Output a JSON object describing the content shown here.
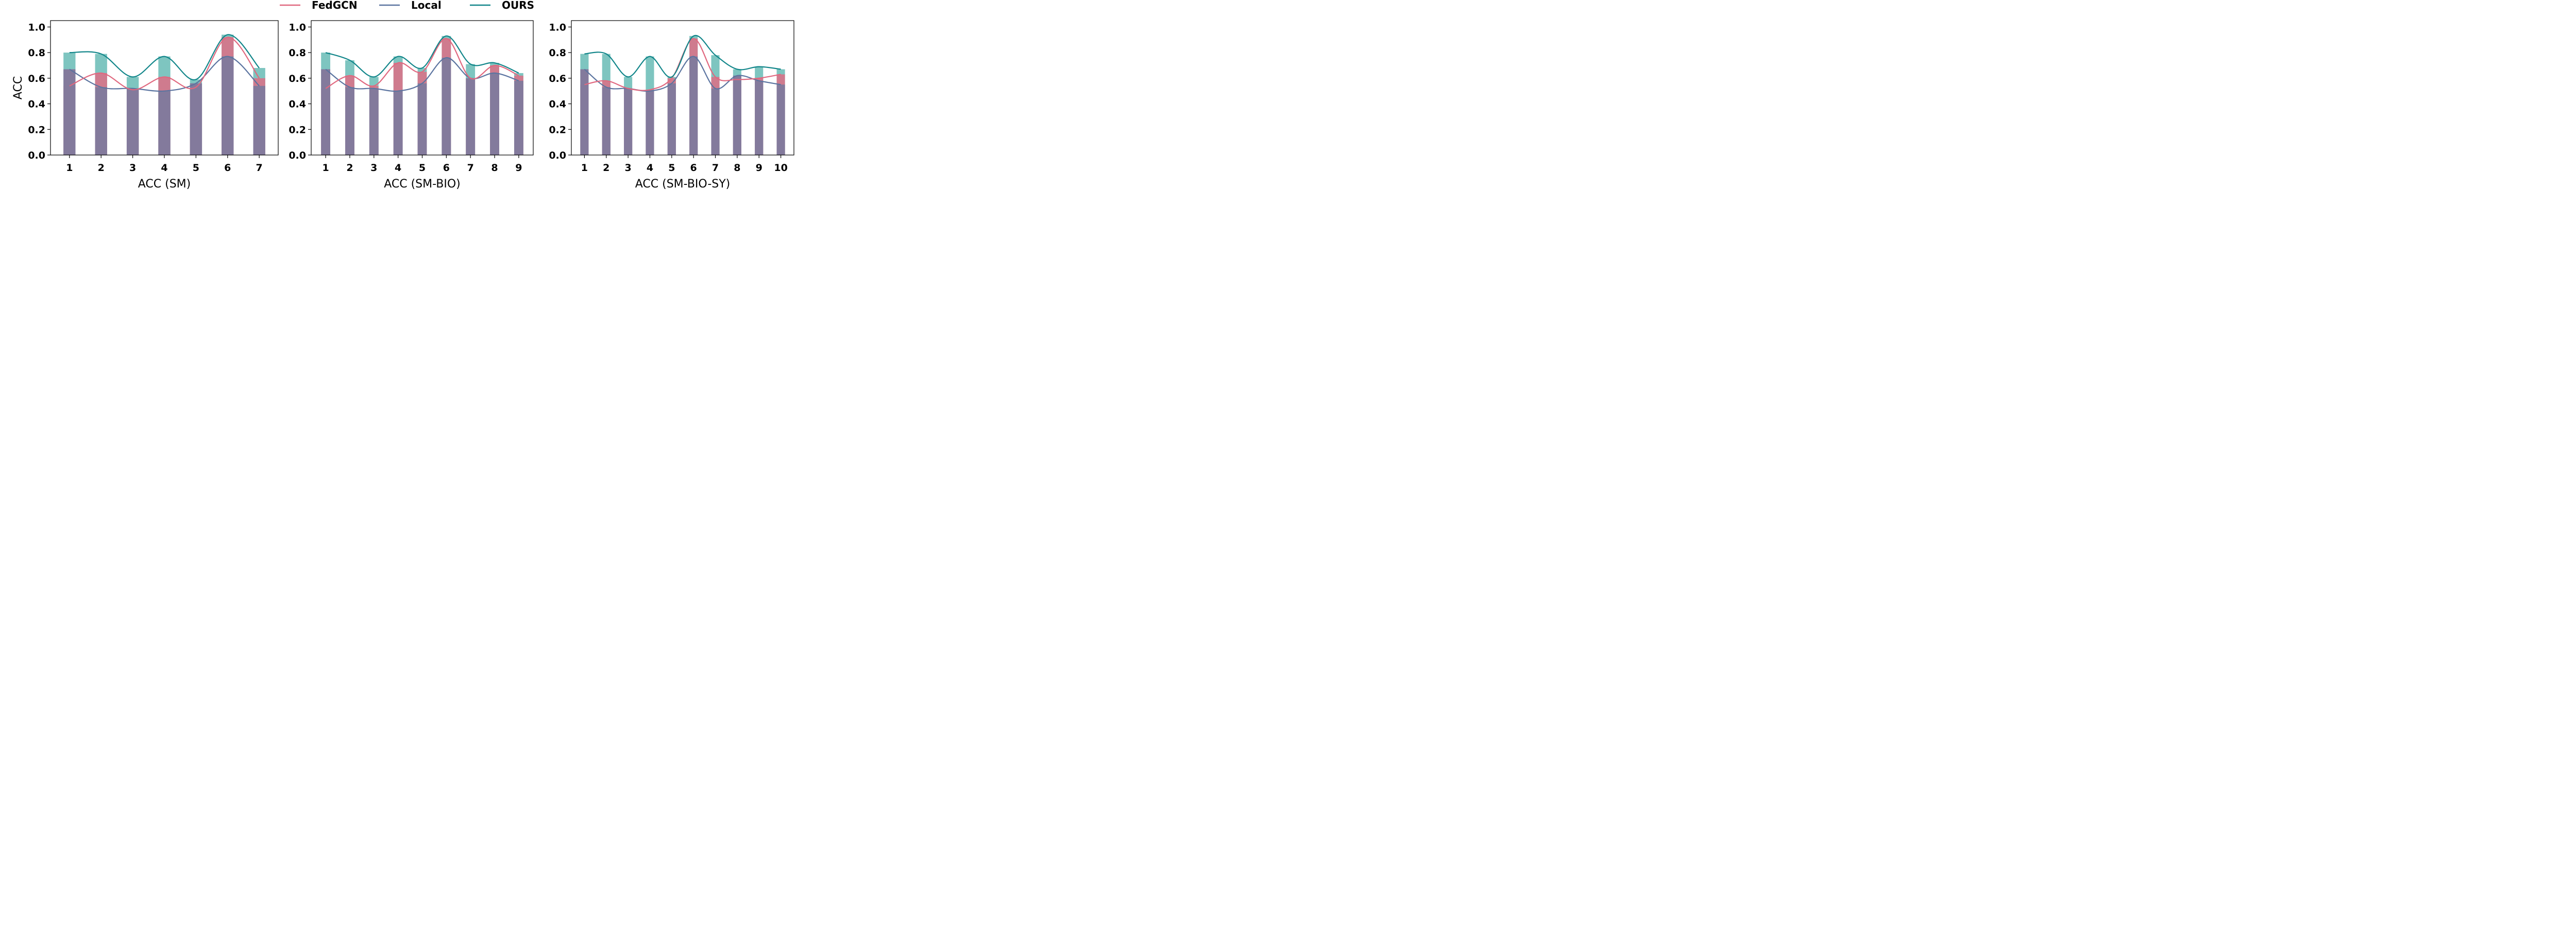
{
  "colors": {
    "FedGCN": "#e0687f",
    "Local": "#5b74a0",
    "OURS": "#12868a",
    "ours_bar": "#7ec5c0",
    "fedgcn_bar": "#cf7b8e",
    "local_bar": "#837a9c"
  },
  "legend": {
    "placement": "top-center",
    "entries": [
      "FedGCN",
      "Local",
      "OURS"
    ]
  },
  "chart_data": [
    {
      "type": "bar",
      "xlabel": "ACC (SM)",
      "ylabel": "ACC",
      "ylim": [
        0,
        1.05
      ],
      "yticks": [
        "0.0",
        "0.2",
        "0.4",
        "0.6",
        "0.8",
        "1.0"
      ],
      "categories": [
        "1",
        "2",
        "3",
        "4",
        "5",
        "6",
        "7"
      ],
      "series": [
        {
          "name": "FedGCN",
          "values": [
            0.54,
            0.64,
            0.51,
            0.61,
            0.53,
            0.92,
            0.6
          ]
        },
        {
          "name": "Local",
          "values": [
            0.67,
            0.53,
            0.52,
            0.5,
            0.56,
            0.77,
            0.54
          ]
        },
        {
          "name": "OURS",
          "values": [
            0.8,
            0.79,
            0.61,
            0.77,
            0.59,
            0.94,
            0.68
          ]
        }
      ]
    },
    {
      "type": "bar",
      "xlabel": "ACC (SM-BIO)",
      "ylabel": "",
      "ylim": [
        0,
        1.05
      ],
      "yticks": [
        "0.0",
        "0.2",
        "0.4",
        "0.6",
        "0.8",
        "1.0"
      ],
      "categories": [
        "1",
        "2",
        "3",
        "4",
        "5",
        "6",
        "7",
        "8",
        "9"
      ],
      "series": [
        {
          "name": "FedGCN",
          "values": [
            0.52,
            0.62,
            0.54,
            0.72,
            0.65,
            0.91,
            0.6,
            0.7,
            0.62
          ]
        },
        {
          "name": "Local",
          "values": [
            0.67,
            0.53,
            0.52,
            0.5,
            0.56,
            0.76,
            0.6,
            0.64,
            0.58
          ]
        },
        {
          "name": "OURS",
          "values": [
            0.8,
            0.74,
            0.61,
            0.77,
            0.68,
            0.93,
            0.71,
            0.72,
            0.64
          ]
        }
      ]
    },
    {
      "type": "bar",
      "xlabel": "ACC (SM-BIO-SY)",
      "ylabel": "",
      "ylim": [
        0,
        1.05
      ],
      "yticks": [
        "0.0",
        "0.2",
        "0.4",
        "0.6",
        "0.8",
        "1.0"
      ],
      "categories": [
        "1",
        "2",
        "3",
        "4",
        "5",
        "6",
        "7",
        "8",
        "9",
        "10"
      ],
      "series": [
        {
          "name": "FedGCN",
          "values": [
            0.55,
            0.58,
            0.52,
            0.51,
            0.6,
            0.91,
            0.61,
            0.59,
            0.6,
            0.63
          ]
        },
        {
          "name": "Local",
          "values": [
            0.67,
            0.53,
            0.52,
            0.5,
            0.56,
            0.77,
            0.52,
            0.62,
            0.58,
            0.55
          ]
        },
        {
          "name": "OURS",
          "values": [
            0.79,
            0.79,
            0.61,
            0.77,
            0.61,
            0.93,
            0.78,
            0.67,
            0.69,
            0.67
          ]
        }
      ]
    }
  ]
}
